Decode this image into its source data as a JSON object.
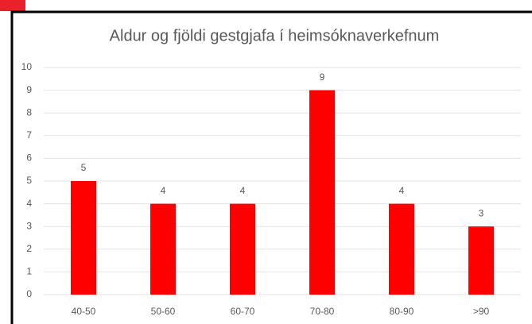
{
  "chart_data": {
    "type": "bar",
    "title": "Aldur og fjöldi gestgjafa í heimsóknaverkefnum",
    "categories": [
      "40-50",
      "50-60",
      "60-70",
      "70-80",
      "80-90",
      ">90"
    ],
    "values": [
      5,
      4,
      4,
      9,
      4,
      3
    ],
    "color": "#ff0000",
    "ylim": [
      0,
      10
    ],
    "yticks": [
      0,
      1,
      2,
      3,
      4,
      5,
      6,
      7,
      8,
      9,
      10
    ],
    "grid": true
  }
}
